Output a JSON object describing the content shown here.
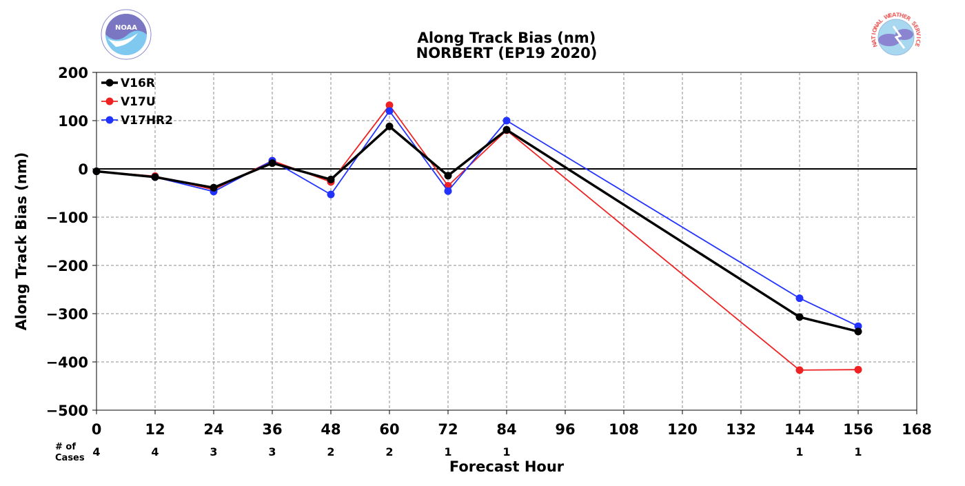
{
  "logos": {
    "left": {
      "icon": "noaa-logo",
      "text": "NOAA"
    },
    "right": {
      "icon": "national-weather-service-logo",
      "text": "NATIONAL WEATHER SERVICE"
    }
  },
  "chart_data": {
    "type": "line",
    "title": "Along Track Bias (nm)",
    "subtitle": "NORBERT (EP19 2020)",
    "xlabel": "Forecast Hour",
    "ylabel": "Along Track Bias (nm)",
    "xlim": [
      0,
      168
    ],
    "ylim": [
      -500,
      200
    ],
    "xticks": [
      0,
      12,
      24,
      36,
      48,
      60,
      72,
      84,
      96,
      108,
      120,
      132,
      144,
      156,
      168
    ],
    "xtick_labels": [
      "0",
      "12",
      "24",
      "36",
      "48",
      "60",
      "72",
      "84",
      "96",
      "108",
      "120",
      "132",
      "144",
      "156",
      "168"
    ],
    "yticks": [
      200,
      100,
      0,
      -100,
      -200,
      -300,
      -400,
      -500
    ],
    "ytick_labels": [
      "200",
      "100",
      "0",
      "−100",
      "−200",
      "−300",
      "−400",
      "−500"
    ],
    "grid": true,
    "zero_line": true,
    "legend_position": "top-left",
    "x": [
      0,
      12,
      24,
      36,
      48,
      60,
      72,
      84,
      144,
      156
    ],
    "series": [
      {
        "name": "V17U",
        "color": "#ee2222",
        "lineWidth": 1.8,
        "values": [
          -5,
          -15,
          -43,
          17,
          -27,
          132,
          -35,
          80,
          -417,
          -416
        ]
      },
      {
        "name": "V17HR2",
        "color": "#2233ff",
        "lineWidth": 1.8,
        "values": [
          -5,
          -17,
          -47,
          17,
          -53,
          120,
          -46,
          100,
          -268,
          -326
        ]
      },
      {
        "name": "V16R",
        "color": "#000000",
        "lineWidth": 3.5,
        "values": [
          -5,
          -17,
          -39,
          12,
          -22,
          88,
          -14,
          81,
          -307,
          -337
        ]
      }
    ],
    "legend_order": [
      "V16R",
      "V17U",
      "V17HR2"
    ],
    "cases": {
      "label_line1": "# of",
      "label_line2": "Cases",
      "x": [
        0,
        12,
        24,
        36,
        48,
        60,
        72,
        84,
        144,
        156
      ],
      "values": [
        "4",
        "4",
        "3",
        "3",
        "2",
        "2",
        "1",
        "1",
        "1",
        "1"
      ]
    }
  }
}
